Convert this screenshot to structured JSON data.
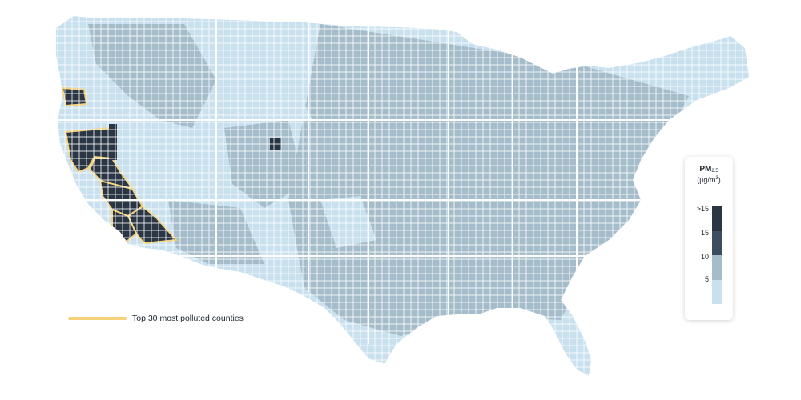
{
  "map": {
    "annotation": {
      "label": "Top 30 most polluted counties",
      "color": "#f5d27a"
    }
  },
  "legend": {
    "title_main": "PM",
    "title_sub": "2.5",
    "unit_main": "(µg/m",
    "unit_sup": "3",
    "unit_close": ")",
    "ticks": [
      ">15",
      "15",
      "10",
      "5"
    ],
    "colors": [
      "#2a3644",
      "#3e4e61",
      "#a5bccb",
      "#c9e1ee"
    ]
  },
  "colors": {
    "county_light": "#c9e1ee",
    "county_mid": "#a5bccb",
    "county_dark": "#2a3644",
    "border": "#ffffff",
    "highlight": "#f5d27a"
  }
}
